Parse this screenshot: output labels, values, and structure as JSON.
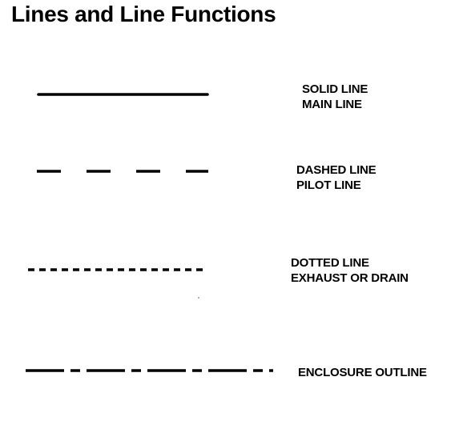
{
  "title": "Lines and Line Functions",
  "line_color": "#000000",
  "legend": [
    {
      "style": "solid",
      "line1": "SOLID LINE",
      "line2": "MAIN LINE"
    },
    {
      "style": "dashed",
      "line1": "DASHED LINE",
      "line2": "PILOT LINE"
    },
    {
      "style": "dotted",
      "line1": "DOTTED LINE",
      "line2": "EXHAUST OR DRAIN"
    },
    {
      "style": "dash-dot",
      "line1": "ENCLOSURE OUTLINE"
    }
  ]
}
